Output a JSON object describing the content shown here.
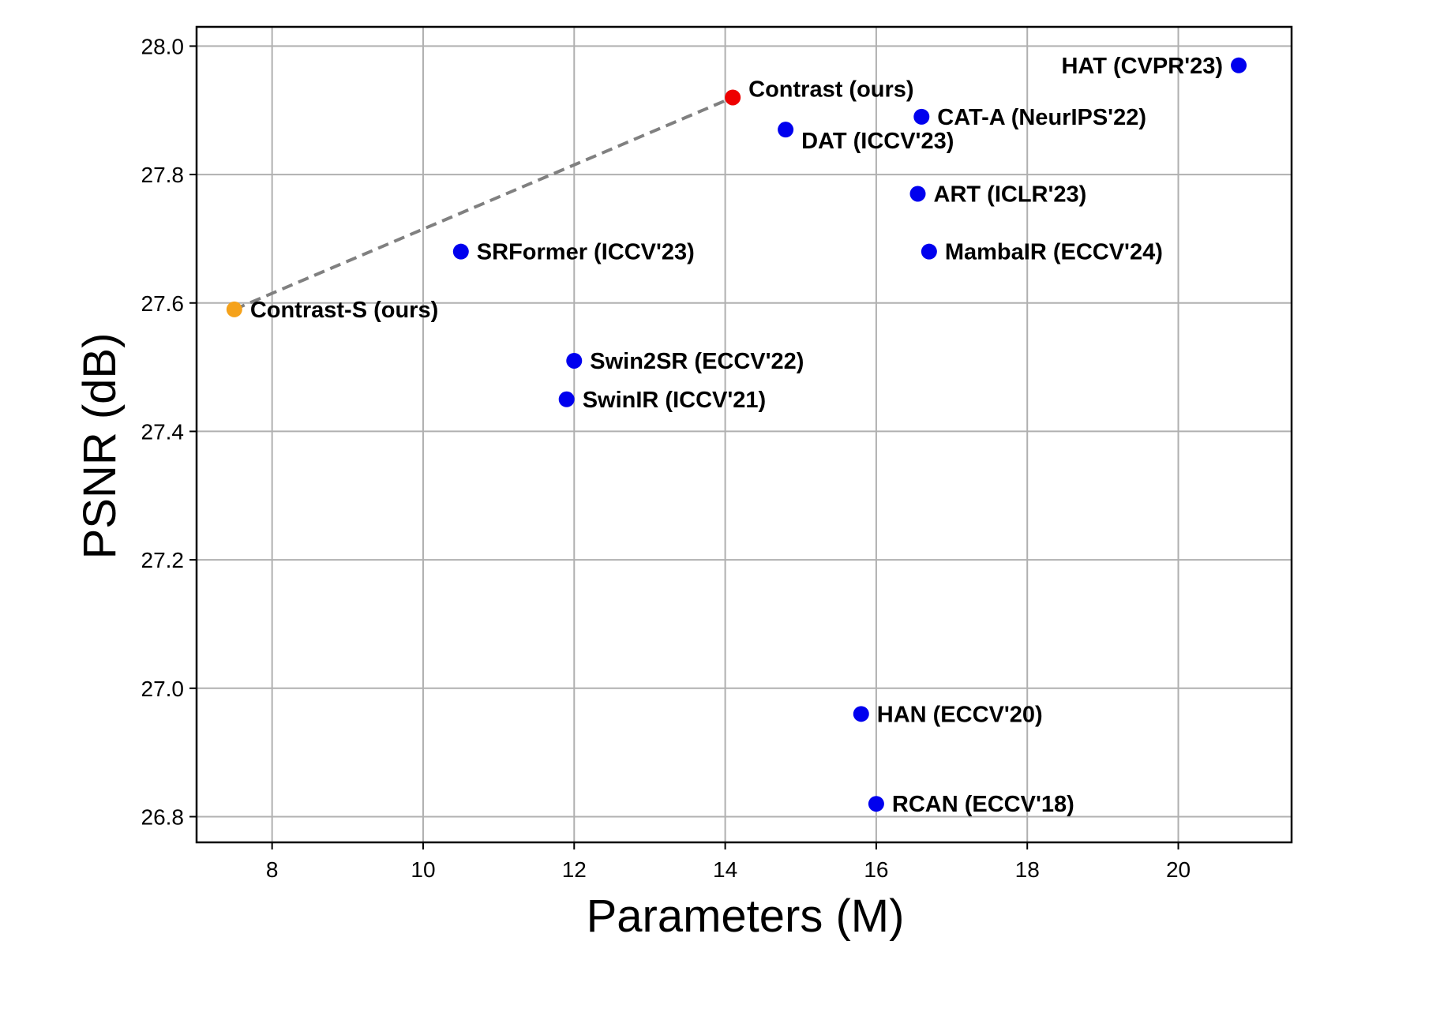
{
  "chart_data": {
    "type": "scatter",
    "xlabel": "Parameters (M)",
    "ylabel": "PSNR (dB)",
    "xlim": [
      7,
      21.5
    ],
    "ylim": [
      26.76,
      28.03
    ],
    "x_ticks": [
      8,
      10,
      12,
      14,
      16,
      18,
      20
    ],
    "x_tick_labels": [
      "8",
      "10",
      "12",
      "14",
      "16",
      "18",
      "20"
    ],
    "y_ticks": [
      26.8,
      27.0,
      27.2,
      27.4,
      27.6,
      27.8,
      28.0
    ],
    "y_tick_labels": [
      "26.8",
      "27.0",
      "27.2",
      "27.4",
      "27.6",
      "27.8",
      "28.0"
    ],
    "grid": true,
    "points": [
      {
        "label": "HAT (CVPR'23)",
        "x": 20.8,
        "y": 27.97,
        "color": "#0000ee"
      },
      {
        "label": "Contrast (ours)",
        "x": 14.1,
        "y": 27.92,
        "color": "#ee0000"
      },
      {
        "label": "CAT-A (NeurIPS'22)",
        "x": 16.6,
        "y": 27.89,
        "color": "#0000ee"
      },
      {
        "label": "DAT (ICCV'23)",
        "x": 14.8,
        "y": 27.87,
        "color": "#0000ee"
      },
      {
        "label": "ART (ICLR'23)",
        "x": 16.55,
        "y": 27.77,
        "color": "#0000ee"
      },
      {
        "label": "SRFormer (ICCV'23)",
        "x": 10.5,
        "y": 27.68,
        "color": "#0000ee"
      },
      {
        "label": "MambaIR (ECCV'24)",
        "x": 16.7,
        "y": 27.68,
        "color": "#0000ee"
      },
      {
        "label": "Contrast-S (ours)",
        "x": 7.5,
        "y": 27.59,
        "color": "#f5a21b"
      },
      {
        "label": "Swin2SR (ECCV'22)",
        "x": 12.0,
        "y": 27.51,
        "color": "#0000ee"
      },
      {
        "label": "SwinIR (ICCV'21)",
        "x": 11.9,
        "y": 27.45,
        "color": "#0000ee"
      },
      {
        "label": "HAN (ECCV'20)",
        "x": 15.8,
        "y": 26.96,
        "color": "#0000ee"
      },
      {
        "label": "RCAN (ECCV'18)",
        "x": 16.0,
        "y": 26.82,
        "color": "#0000ee"
      }
    ],
    "connector": {
      "from": "Contrast-S (ours)",
      "to": "Contrast (ours)",
      "style": "dashed",
      "color": "#808080"
    }
  }
}
